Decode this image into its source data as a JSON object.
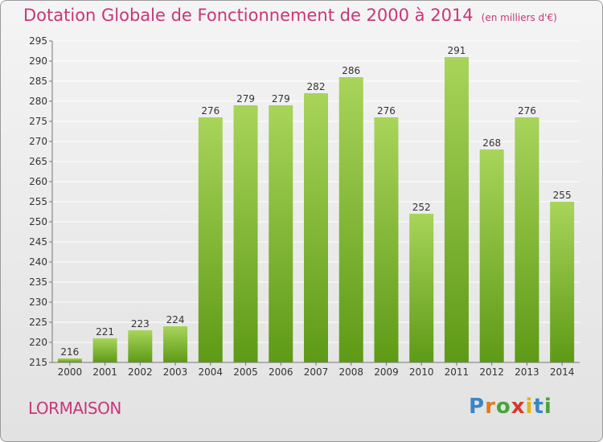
{
  "title": "Dotation Globale de Fonctionnement de 2000 à 2014",
  "subtitle": "(en milliers d'€)",
  "commune": "LORMAISON",
  "logo": {
    "letters": [
      "P",
      "r",
      "o",
      "x",
      "i",
      "t",
      "i"
    ],
    "colors": [
      "#3a86c8",
      "#e07a1f",
      "#4aa33a",
      "#d63a2a",
      "#e0b51f",
      "#3a86c8",
      "#4aa33a"
    ]
  },
  "colors": {
    "title": "#c8367a",
    "bar_top": "#a8d45a",
    "bar_bottom": "#5e9a16",
    "grid": "#ffffff"
  },
  "chart_data": {
    "type": "bar",
    "categories": [
      "2000",
      "2001",
      "2002",
      "2003",
      "2004",
      "2005",
      "2006",
      "2007",
      "2008",
      "2009",
      "2010",
      "2011",
      "2012",
      "2013",
      "2014"
    ],
    "values": [
      216,
      221,
      223,
      224,
      276,
      279,
      279,
      282,
      286,
      276,
      252,
      291,
      268,
      276,
      255
    ],
    "ylim": [
      215,
      295
    ],
    "yticks": [
      215,
      220,
      225,
      230,
      235,
      240,
      245,
      250,
      255,
      260,
      265,
      270,
      275,
      280,
      285,
      290,
      295
    ],
    "grid": true,
    "data_labels": true
  }
}
